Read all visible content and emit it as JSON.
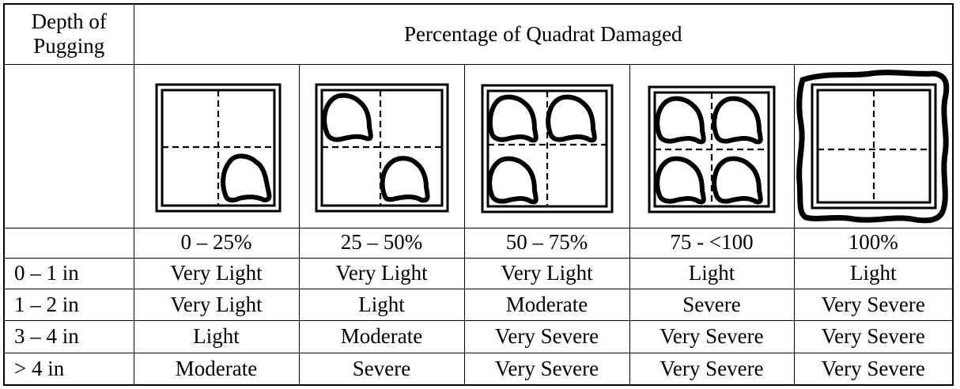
{
  "header": {
    "corner_line1": "Depth of",
    "corner_line2": "Pugging",
    "title": "Percentage of Quadrat Damaged"
  },
  "diagrams": [
    {
      "icon": "quadrat-one-quarter-damage-icon",
      "damaged_quadrants": [
        "bottom-right"
      ]
    },
    {
      "icon": "quadrat-two-quarters-damage-icon",
      "damaged_quadrants": [
        "top-left",
        "bottom-right"
      ]
    },
    {
      "icon": "quadrat-three-quarters-damage-icon",
      "damaged_quadrants": [
        "top-left",
        "top-right",
        "bottom-left"
      ]
    },
    {
      "icon": "quadrat-four-quarters-damage-icon",
      "damaged_quadrants": [
        "top-left",
        "top-right",
        "bottom-left",
        "bottom-right"
      ]
    },
    {
      "icon": "quadrat-full-damage-icon",
      "damaged_quadrants": [
        "all"
      ],
      "outlined": true
    }
  ],
  "percent_labels": [
    "0 – 25%",
    "25 – 50%",
    "50 – 75%",
    "75 - <100",
    "100%"
  ],
  "rows": [
    {
      "depth": "0 – 1 in",
      "ratings": [
        "Very Light",
        "Very Light",
        "Very Light",
        "Light",
        "Light"
      ]
    },
    {
      "depth": "1 – 2 in",
      "ratings": [
        "Very Light",
        "Light",
        "Moderate",
        "Severe",
        "Very Severe"
      ]
    },
    {
      "depth": "3 – 4 in",
      "ratings": [
        "Light",
        "Moderate",
        "Very Severe",
        "Very Severe",
        "Very Severe"
      ]
    },
    {
      "depth": "> 4 in",
      "ratings": [
        "Moderate",
        "Severe",
        "Very Severe",
        "Very Severe",
        "Very Severe"
      ]
    }
  ]
}
